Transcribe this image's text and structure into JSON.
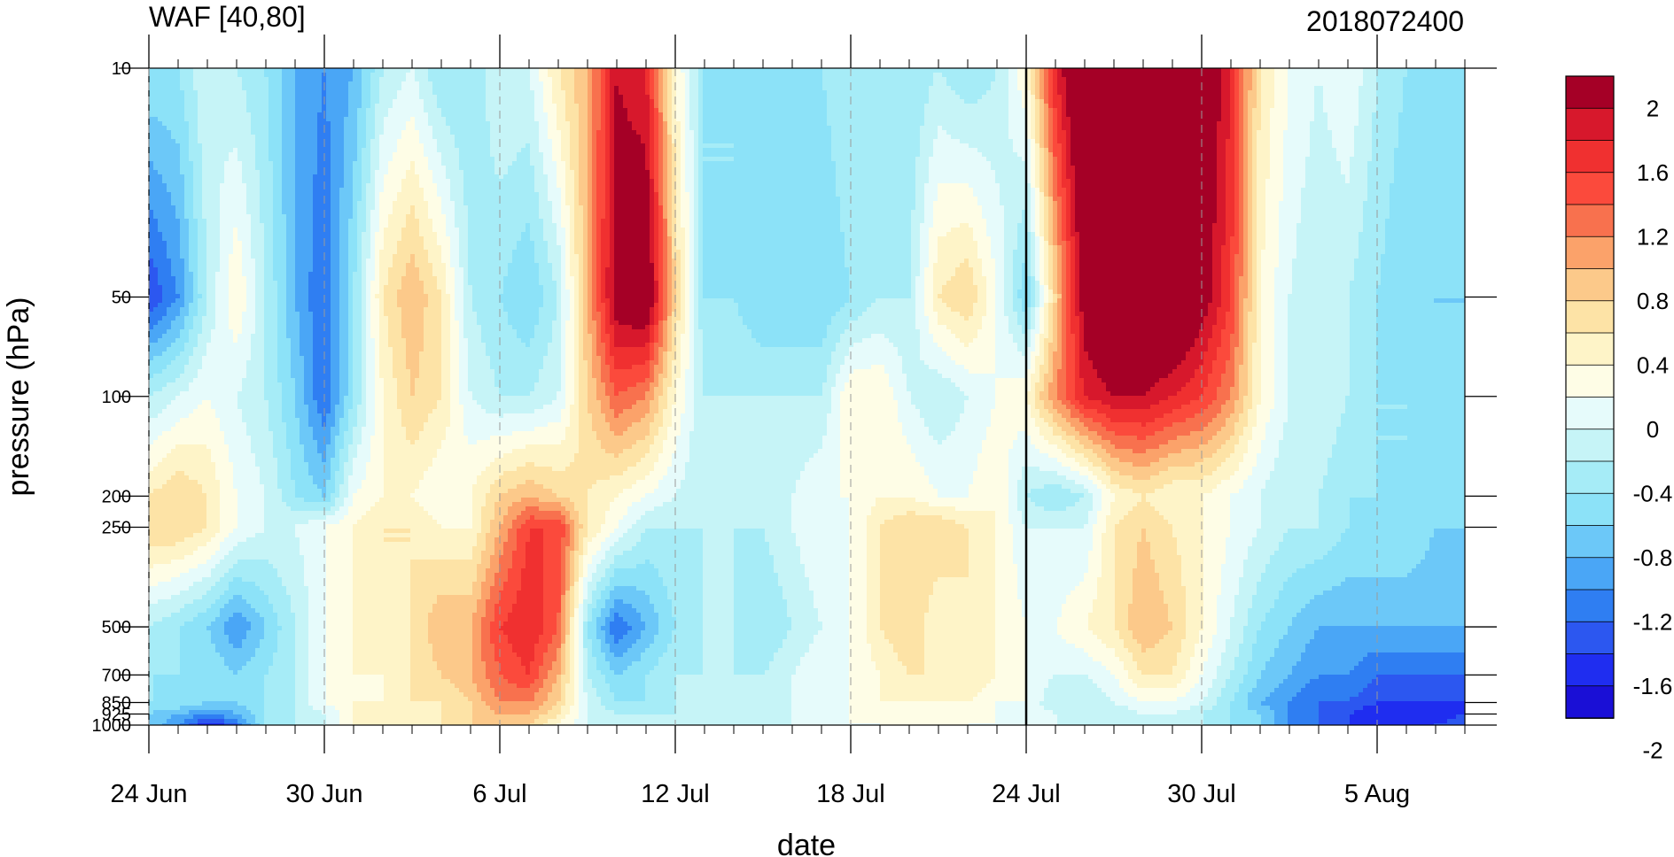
{
  "chart_data": {
    "type": "heatmap",
    "subtype": "filled-contour",
    "title": "WAF [40,80]",
    "right_title": "2018072400",
    "xlabel": "date",
    "ylabel": "pressure (hPa)",
    "x_ticks": [
      {
        "date": "2018-06-24",
        "label": "24 Jun"
      },
      {
        "date": "2018-06-30",
        "label": "30 Jun"
      },
      {
        "date": "2018-07-06",
        "label": "6 Jul"
      },
      {
        "date": "2018-07-12",
        "label": "12 Jul"
      },
      {
        "date": "2018-07-18",
        "label": "18 Jul"
      },
      {
        "date": "2018-07-24",
        "label": "24 Jul"
      },
      {
        "date": "2018-07-30",
        "label": "30 Jul"
      },
      {
        "date": "2018-08-05",
        "label": "5 Aug"
      }
    ],
    "x_range": [
      "2018-06-24",
      "2018-08-08"
    ],
    "y_ticks": [
      {
        "value": 10,
        "label": "10"
      },
      {
        "value": 50,
        "label": "50"
      },
      {
        "value": 100,
        "label": "100"
      },
      {
        "value": 200,
        "label": "200"
      },
      {
        "value": 250,
        "label": "250"
      },
      {
        "value": 500,
        "label": "500"
      },
      {
        "value": 700,
        "label": "700"
      },
      {
        "value": 850,
        "label": "850"
      },
      {
        "value": 925,
        "label": "925"
      },
      {
        "value": 1000,
        "label": "1000"
      }
    ],
    "y_scale": "pressure levels, reversed (1000 at bottom, 10 at top)",
    "vertical_marker_date": "2018-07-24",
    "colorbar": {
      "labels": [
        "2",
        "1.6",
        "1.2",
        "0.8",
        "0.4",
        "0",
        "-0.4",
        "-0.8",
        "-1.2",
        "-1.6",
        "-2"
      ],
      "colors": [
        "#a50026",
        "#d7182c",
        "#f03030",
        "#fb4a3c",
        "#f8714e",
        "#fba26a",
        "#fcc98a",
        "#fde3a6",
        "#fef4c8",
        "#fefde6",
        "#e6fbfb",
        "#c6f4f7",
        "#a6ecf7",
        "#8ce2f8",
        "#6cc8f8",
        "#4aa6f6",
        "#2f7ef2",
        "#2c57f0",
        "#1f2df0",
        "#1a0fd6"
      ]
    },
    "values_levels": [
      10,
      50,
      100,
      200,
      250,
      500,
      700,
      850,
      925,
      1000
    ],
    "values_dates": [
      "2018-06-24",
      "2018-06-25",
      "2018-06-26",
      "2018-06-27",
      "2018-06-28",
      "2018-06-29",
      "2018-06-30",
      "2018-07-01",
      "2018-07-02",
      "2018-07-03",
      "2018-07-04",
      "2018-07-05",
      "2018-07-06",
      "2018-07-07",
      "2018-07-08",
      "2018-07-09",
      "2018-07-10",
      "2018-07-11",
      "2018-07-12",
      "2018-07-13",
      "2018-07-14",
      "2018-07-15",
      "2018-07-16",
      "2018-07-17",
      "2018-07-18",
      "2018-07-19",
      "2018-07-20",
      "2018-07-21",
      "2018-07-22",
      "2018-07-23",
      "2018-07-24",
      "2018-07-25",
      "2018-07-26",
      "2018-07-27",
      "2018-07-28",
      "2018-07-29",
      "2018-07-30",
      "2018-07-31",
      "2018-08-01",
      "2018-08-02",
      "2018-08-03",
      "2018-08-04",
      "2018-08-05",
      "2018-08-06",
      "2018-08-07",
      "2018-08-08"
    ],
    "values": [
      [
        -0.6,
        -0.6,
        -0.2,
        -0.4,
        -0.6,
        -1.0,
        -1.2,
        -1.0,
        -0.4,
        -0.2,
        -0.6,
        -0.6,
        -0.2,
        -0.2,
        0.4,
        0.8,
        1.8,
        1.6,
        0.2,
        -0.6,
        -0.6,
        -0.6,
        -0.8,
        -0.6,
        -0.4,
        -0.6,
        -0.6,
        -0.4,
        -0.6,
        -0.4,
        0.2,
        1.6,
        2.4,
        2.4,
        2.4,
        2.4,
        2.2,
        1.6,
        0.4,
        0.0,
        -0.2,
        0.0,
        -0.4,
        -0.6,
        -0.6,
        -0.6
      ],
      [
        -1.6,
        -1.2,
        -0.4,
        0.2,
        -0.4,
        -1.0,
        -1.4,
        -0.6,
        0.4,
        0.8,
        0.4,
        -0.4,
        -0.6,
        -0.8,
        -0.4,
        0.8,
        2.0,
        2.2,
        0.6,
        -0.6,
        -0.6,
        -0.8,
        -0.8,
        -0.8,
        -0.6,
        -0.4,
        -0.4,
        0.4,
        0.6,
        0.0,
        -0.8,
        0.6,
        2.0,
        2.4,
        2.4,
        2.4,
        2.0,
        1.4,
        0.2,
        -0.2,
        -0.4,
        -0.4,
        -0.6,
        -0.8,
        -0.8,
        -0.8
      ],
      [
        -0.4,
        -0.2,
        0.0,
        -0.2,
        -0.4,
        -0.8,
        -1.4,
        -0.6,
        0.2,
        0.6,
        0.4,
        -0.2,
        -0.4,
        -0.4,
        -0.2,
        0.6,
        1.2,
        1.0,
        0.2,
        -0.4,
        -0.4,
        -0.4,
        -0.4,
        -0.4,
        0.2,
        0.2,
        -0.2,
        -0.4,
        -0.2,
        0.0,
        0.2,
        1.0,
        1.6,
        1.8,
        1.8,
        1.6,
        1.4,
        1.0,
        0.2,
        -0.2,
        -0.2,
        -0.4,
        -0.6,
        -0.6,
        -0.8,
        -0.8
      ],
      [
        0.4,
        0.6,
        0.4,
        0.0,
        -0.2,
        -0.6,
        -0.8,
        0.0,
        0.2,
        0.2,
        0.0,
        0.2,
        0.6,
        0.8,
        0.6,
        0.4,
        0.2,
        0.0,
        -0.2,
        -0.4,
        -0.4,
        -0.4,
        -0.2,
        0.0,
        0.0,
        0.2,
        0.2,
        0.0,
        0.0,
        0.2,
        -0.4,
        -0.6,
        -0.4,
        0.2,
        0.4,
        0.2,
        0.2,
        0.0,
        -0.2,
        -0.4,
        -0.4,
        -0.6,
        -0.6,
        -0.6,
        -0.8,
        -0.8
      ],
      [
        0.6,
        0.6,
        0.4,
        0.0,
        -0.2,
        -0.2,
        0.0,
        0.2,
        0.4,
        0.4,
        0.2,
        0.2,
        0.8,
        1.4,
        1.4,
        0.4,
        0.0,
        -0.4,
        -0.4,
        -0.4,
        -0.4,
        -0.4,
        -0.2,
        0.0,
        0.0,
        0.4,
        0.6,
        0.6,
        0.4,
        0.2,
        -0.2,
        -0.2,
        -0.2,
        0.4,
        0.6,
        0.4,
        0.2,
        0.0,
        -0.2,
        -0.4,
        -0.4,
        -0.6,
        -0.6,
        -0.6,
        -0.8,
        -0.8
      ],
      [
        -0.4,
        -0.6,
        -0.8,
        -1.2,
        -0.8,
        -0.4,
        0.0,
        0.2,
        0.4,
        0.4,
        0.8,
        0.8,
        1.4,
        1.6,
        1.2,
        -0.6,
        -1.4,
        -1.0,
        -0.6,
        -0.4,
        -0.4,
        -0.6,
        -0.4,
        -0.2,
        0.0,
        0.4,
        0.6,
        0.2,
        0.4,
        0.2,
        0.0,
        0.0,
        0.2,
        0.4,
        0.8,
        0.6,
        0.2,
        -0.2,
        -0.6,
        -0.8,
        -1.0,
        -1.0,
        -1.0,
        -1.0,
        -1.0,
        -1.0
      ],
      [
        -0.6,
        -0.6,
        -0.6,
        -0.8,
        -0.6,
        -0.4,
        0.0,
        0.2,
        0.2,
        0.4,
        0.6,
        0.8,
        1.2,
        1.4,
        0.8,
        -0.4,
        -0.8,
        -0.6,
        -0.4,
        -0.4,
        -0.4,
        -0.4,
        -0.2,
        0.0,
        0.0,
        0.2,
        0.4,
        0.4,
        0.4,
        0.2,
        0.0,
        -0.2,
        -0.2,
        0.0,
        0.4,
        0.4,
        0.0,
        -0.4,
        -0.8,
        -1.0,
        -1.2,
        -1.2,
        -1.4,
        -1.4,
        -1.4,
        -1.4
      ],
      [
        -0.6,
        -0.6,
        -0.8,
        -0.8,
        -0.6,
        -0.4,
        0.0,
        0.2,
        0.2,
        0.4,
        0.4,
        0.6,
        1.0,
        1.0,
        0.6,
        -0.2,
        -0.6,
        -0.6,
        -0.4,
        -0.4,
        -0.4,
        -0.4,
        -0.2,
        0.0,
        0.0,
        0.2,
        0.2,
        0.2,
        0.2,
        0.0,
        0.0,
        -0.4,
        -0.4,
        -0.2,
        0.0,
        0.0,
        -0.2,
        -0.6,
        -1.0,
        -1.2,
        -1.4,
        -1.4,
        -1.6,
        -1.6,
        -1.6,
        -1.6
      ],
      [
        -0.8,
        -1.0,
        -1.2,
        -1.0,
        -0.6,
        -0.4,
        -0.2,
        0.2,
        0.4,
        0.4,
        0.4,
        0.6,
        0.8,
        0.8,
        0.4,
        -0.2,
        -0.4,
        -0.4,
        -0.4,
        -0.4,
        -0.4,
        -0.4,
        -0.2,
        0.0,
        0.0,
        0.2,
        0.2,
        0.2,
        0.2,
        0.0,
        0.0,
        -0.2,
        -0.4,
        -0.4,
        -0.2,
        -0.2,
        -0.4,
        -0.6,
        -0.8,
        -1.2,
        -1.4,
        -1.6,
        -1.8,
        -1.8,
        -1.8,
        -1.6
      ],
      [
        -0.8,
        -1.2,
        -1.8,
        -1.4,
        -0.6,
        -0.4,
        -0.2,
        0.2,
        0.4,
        0.4,
        0.4,
        0.6,
        0.6,
        0.6,
        0.2,
        -0.2,
        -0.4,
        -0.4,
        -0.4,
        -0.4,
        -0.4,
        -0.4,
        -0.2,
        0.0,
        0.0,
        0.0,
        0.2,
        0.2,
        0.0,
        0.0,
        0.0,
        -0.2,
        -0.4,
        -0.4,
        -0.4,
        -0.4,
        -0.4,
        -0.6,
        -0.8,
        -1.2,
        -1.4,
        -1.6,
        -1.8,
        -1.8,
        -1.6,
        -1.4
      ]
    ]
  }
}
